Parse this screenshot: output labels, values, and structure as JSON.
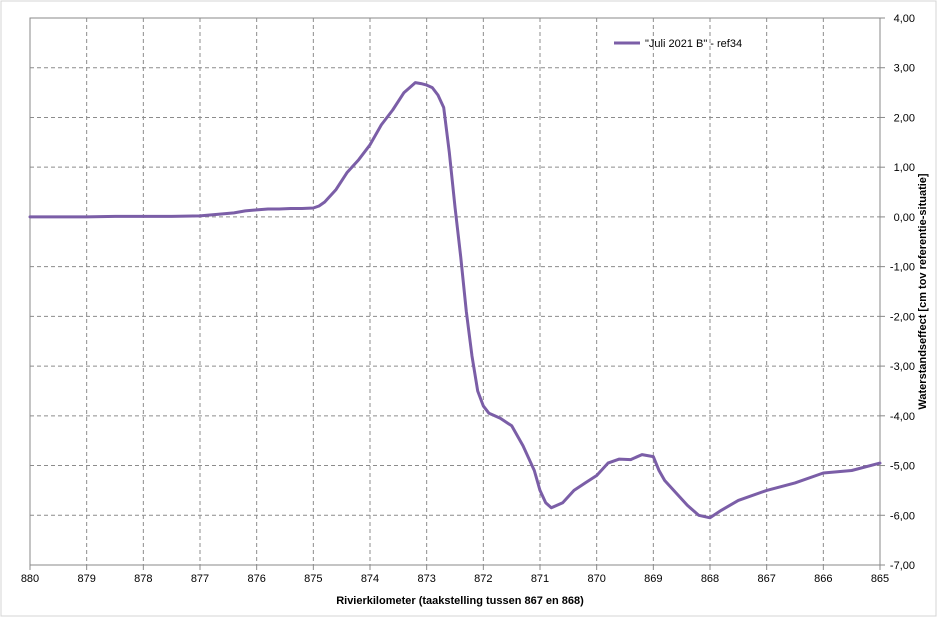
{
  "chart_data": {
    "type": "line",
    "title": "",
    "xlabel": "Rivierkilometer (taakstelling tussen 867 en 868)",
    "ylabel": "Waterstandseffect [cm tov referentie-situatie]",
    "xlim": [
      880,
      865
    ],
    "x_reversed": true,
    "ylim": [
      -7,
      4
    ],
    "x_ticks": [
      880,
      879,
      878,
      877,
      876,
      875,
      874,
      873,
      872,
      871,
      870,
      869,
      868,
      867,
      866,
      865
    ],
    "x_tick_labels": [
      "880",
      "879",
      "878",
      "877",
      "876",
      "875",
      "874",
      "873",
      "872",
      "871",
      "870",
      "869",
      "868",
      "867",
      "866",
      "865"
    ],
    "y_ticks": [
      4,
      3,
      2,
      1,
      0,
      -1,
      -2,
      -3,
      -4,
      -5,
      -6,
      -7
    ],
    "y_tick_labels": [
      "4,00",
      "3,00",
      "2,00",
      "1,00",
      "0,00",
      "-1,00",
      "-2,00",
      "-3,00",
      "-4,00",
      "-5,00",
      "-6,00",
      "-7,00"
    ],
    "y_axis_side": "right",
    "grid": true,
    "grid_style": "dashed",
    "legend_position": "top-right",
    "color": "#7b5ea7",
    "series": [
      {
        "name": "\"Juli 2021 B\" - ref34",
        "x": [
          880,
          879.5,
          879,
          878.5,
          878,
          877.5,
          877,
          876.8,
          876.6,
          876.4,
          876.2,
          876,
          875.8,
          875.6,
          875.4,
          875.2,
          875,
          874.9,
          874.8,
          874.6,
          874.4,
          874.2,
          874,
          873.8,
          873.6,
          873.4,
          873.3,
          873.2,
          873.1,
          873,
          872.9,
          872.8,
          872.7,
          872.6,
          872.5,
          872.4,
          872.3,
          872.2,
          872.1,
          872,
          871.9,
          871.8,
          871.7,
          871.5,
          871.3,
          871.1,
          871,
          870.9,
          870.8,
          870.6,
          870.4,
          870.2,
          870,
          869.8,
          869.6,
          869.4,
          869.2,
          869,
          868.9,
          868.8,
          868.6,
          868.4,
          868.2,
          868,
          867.8,
          867.5,
          867,
          866.5,
          866,
          865.5,
          865
        ],
        "y": [
          0.0,
          0.0,
          0.0,
          0.01,
          0.01,
          0.01,
          0.02,
          0.04,
          0.06,
          0.08,
          0.12,
          0.14,
          0.16,
          0.16,
          0.17,
          0.17,
          0.18,
          0.22,
          0.3,
          0.55,
          0.9,
          1.15,
          1.45,
          1.85,
          2.15,
          2.5,
          2.6,
          2.7,
          2.68,
          2.65,
          2.6,
          2.45,
          2.2,
          1.3,
          0.2,
          -0.8,
          -1.9,
          -2.8,
          -3.5,
          -3.8,
          -3.95,
          -4.0,
          -4.05,
          -4.2,
          -4.6,
          -5.1,
          -5.5,
          -5.75,
          -5.85,
          -5.75,
          -5.5,
          -5.35,
          -5.2,
          -4.95,
          -4.87,
          -4.88,
          -4.78,
          -4.82,
          -5.1,
          -5.3,
          -5.55,
          -5.8,
          -6.0,
          -6.05,
          -5.9,
          -5.7,
          -5.5,
          -5.35,
          -5.15,
          -5.1,
          -4.95
        ]
      }
    ]
  }
}
